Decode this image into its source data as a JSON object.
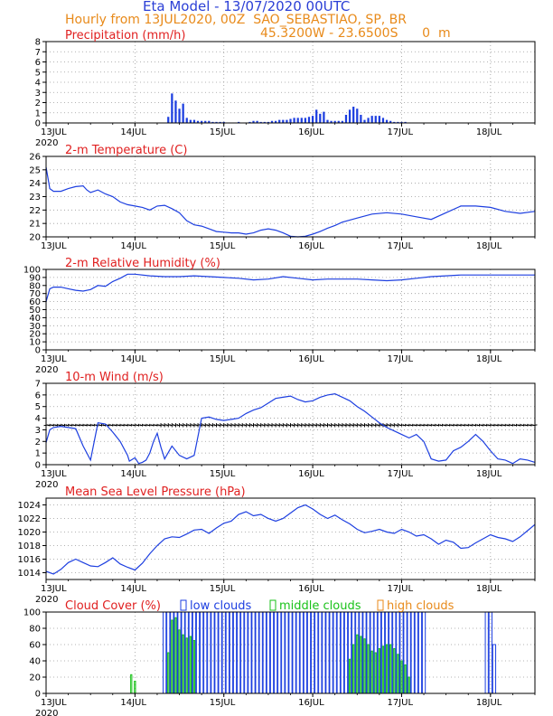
{
  "header": {
    "title": "Eta Model - 13/07/2020 00UTC",
    "subtitle": "Hourly from 13JUL2020, 00Z  SAO_SEBASTIAO, SP, BR",
    "coords": "45.3200W - 23.6500S      0  m"
  },
  "colors": {
    "blue": "#1d3fe0",
    "red": "#e02020",
    "orange": "#e88a1a",
    "green": "#19c219",
    "black": "#000000"
  },
  "axis": {
    "day_labels": [
      "13JUL",
      "14JUL",
      "15JUL",
      "16JUL",
      "17JUL",
      "18JUL"
    ],
    "year_label": "2020",
    "x_range_hours": [
      0,
      132
    ]
  },
  "chart_data": [
    {
      "id": "precip",
      "type": "bar",
      "title": "Precipitation (mm/h)",
      "ylim": [
        0,
        8
      ],
      "yticks": [
        "0",
        "1",
        "2",
        "3",
        "4",
        "5",
        "6",
        "7",
        "8"
      ],
      "x": [
        33,
        34,
        35,
        36,
        37,
        38,
        39,
        40,
        41,
        42,
        43,
        44,
        45,
        46,
        47,
        48,
        52,
        55,
        56,
        57,
        58,
        59,
        60,
        61,
        62,
        63,
        64,
        65,
        66,
        67,
        68,
        69,
        70,
        71,
        72,
        73,
        74,
        75,
        76,
        77,
        78,
        79,
        80,
        81,
        82,
        83,
        84,
        85,
        86,
        87,
        88,
        89,
        90,
        91,
        92,
        93,
        94,
        95,
        96,
        97
      ],
      "values": [
        0.6,
        2.9,
        2.2,
        1.4,
        1.9,
        0.5,
        0.3,
        0.3,
        0.2,
        0.2,
        0.2,
        0.2,
        0.1,
        0.1,
        0.1,
        0.1,
        0.1,
        0.1,
        0.2,
        0.2,
        0.1,
        0.1,
        0.1,
        0.2,
        0.2,
        0.3,
        0.3,
        0.3,
        0.4,
        0.5,
        0.5,
        0.5,
        0.5,
        0.6,
        0.7,
        1.3,
        0.9,
        1.1,
        0.3,
        0.2,
        0.2,
        0.2,
        0.2,
        0.8,
        1.3,
        1.6,
        1.4,
        0.8,
        0.3,
        0.5,
        0.7,
        0.7,
        0.7,
        0.5,
        0.3,
        0.2,
        0.1,
        0.1,
        0.1,
        0.1
      ]
    },
    {
      "id": "temp",
      "type": "line",
      "title": "2-m Temperature (C)",
      "ylim": [
        20,
        26
      ],
      "yticks": [
        "20",
        "21",
        "22",
        "23",
        "24",
        "25",
        "26"
      ],
      "x": [
        0,
        1,
        2,
        4,
        6,
        8,
        10,
        11,
        12,
        14,
        16,
        18,
        20,
        22,
        24,
        26,
        28,
        30,
        32,
        34,
        36,
        38,
        40,
        42,
        44,
        46,
        48,
        50,
        52,
        54,
        56,
        58,
        60,
        62,
        64,
        66,
        68,
        70,
        72,
        74,
        76,
        78,
        80,
        84,
        88,
        92,
        96,
        100,
        104,
        108,
        112,
        116,
        120,
        124,
        128,
        132
      ],
      "values": [
        25.2,
        23.6,
        23.4,
        23.4,
        23.6,
        23.75,
        23.8,
        23.5,
        23.3,
        23.5,
        23.2,
        23.0,
        22.6,
        22.4,
        22.3,
        22.2,
        22.0,
        22.3,
        22.35,
        22.1,
        21.8,
        21.2,
        20.9,
        20.8,
        20.6,
        20.4,
        20.35,
        20.3,
        20.3,
        20.2,
        20.3,
        20.5,
        20.6,
        20.5,
        20.3,
        20.05,
        20.0,
        20.05,
        20.2,
        20.4,
        20.65,
        20.85,
        21.1,
        21.4,
        21.7,
        21.8,
        21.7,
        21.5,
        21.3,
        21.8,
        22.3,
        22.3,
        22.2,
        21.9,
        21.75,
        21.9
      ]
    },
    {
      "id": "rh",
      "type": "line",
      "title": "2-m Relative Humidity (%)",
      "ylim": [
        0,
        100
      ],
      "yticks": [
        "0",
        "10",
        "20",
        "30",
        "40",
        "50",
        "60",
        "70",
        "80",
        "90",
        "100"
      ],
      "x": [
        0,
        1,
        2,
        4,
        6,
        8,
        10,
        12,
        14,
        16,
        18,
        20,
        22,
        24,
        28,
        32,
        36,
        40,
        44,
        48,
        52,
        56,
        60,
        64,
        68,
        72,
        76,
        80,
        84,
        88,
        92,
        96,
        100,
        104,
        108,
        112,
        116,
        120,
        124,
        128,
        132
      ],
      "values": [
        60,
        76,
        78,
        78,
        76,
        74,
        73,
        75,
        80,
        79,
        85,
        89,
        94,
        94,
        92,
        91,
        91,
        92,
        91,
        90,
        89,
        87,
        88,
        91,
        89,
        87,
        88,
        88,
        88,
        87,
        86,
        87,
        89,
        91,
        92,
        93,
        93,
        93,
        93,
        93,
        93
      ]
    },
    {
      "id": "wind",
      "type": "line",
      "title": "10-m Wind (m/s)",
      "ylim": [
        0,
        7
      ],
      "yticks": [
        "0",
        "1",
        "2",
        "3",
        "4",
        "5",
        "6",
        "7"
      ],
      "x": [
        0,
        1,
        2,
        4,
        6,
        8,
        10,
        12,
        13,
        14,
        16,
        18,
        20,
        22,
        22.5,
        24,
        25,
        26,
        27,
        28,
        29,
        30,
        31,
        32,
        34,
        36,
        38,
        40,
        42,
        44,
        46,
        48,
        50,
        52,
        54,
        56,
        58,
        60,
        62,
        64,
        66,
        68,
        70,
        72,
        74,
        76,
        78,
        80,
        82,
        84,
        86,
        88,
        90,
        92,
        94,
        96,
        98,
        100,
        102,
        104,
        106,
        108,
        110,
        112,
        114,
        116,
        118,
        120,
        122,
        124,
        126,
        128,
        130,
        132
      ],
      "values": [
        1.9,
        3.0,
        3.2,
        3.3,
        3.2,
        3.1,
        1.6,
        0.4,
        2.0,
        3.6,
        3.5,
        2.8,
        2.0,
        0.8,
        0.3,
        0.6,
        0.1,
        0.2,
        0.4,
        1.0,
        2.0,
        2.7,
        1.5,
        0.5,
        1.6,
        0.8,
        0.5,
        0.8,
        4.0,
        4.1,
        3.9,
        3.8,
        3.9,
        4.0,
        4.4,
        4.7,
        4.9,
        5.3,
        5.7,
        5.8,
        5.9,
        5.6,
        5.4,
        5.5,
        5.8,
        6.0,
        6.1,
        5.8,
        5.5,
        5.0,
        4.6,
        4.1,
        3.6,
        3.2,
        2.9,
        2.6,
        2.3,
        2.6,
        2.0,
        0.5,
        0.3,
        0.4,
        1.2,
        1.5,
        2.0,
        2.6,
        2.0,
        1.2,
        0.5,
        0.4,
        0.1,
        0.5,
        0.4,
        0.2
      ]
    },
    {
      "id": "mslp",
      "type": "line",
      "title": "Mean Sea Level Pressure (hPa)",
      "ylim": [
        1013,
        1025
      ],
      "yticks": [
        "1014",
        "1016",
        "1018",
        "1020",
        "1022",
        "1024"
      ],
      "x": [
        0,
        2,
        4,
        6,
        8,
        10,
        12,
        14,
        16,
        18,
        20,
        22,
        24,
        26,
        28,
        30,
        32,
        34,
        36,
        38,
        40,
        42,
        44,
        46,
        48,
        50,
        52,
        54,
        56,
        58,
        60,
        62,
        64,
        66,
        68,
        70,
        72,
        74,
        76,
        78,
        80,
        82,
        84,
        86,
        88,
        90,
        92,
        94,
        96,
        98,
        100,
        102,
        104,
        106,
        108,
        110,
        112,
        114,
        116,
        118,
        120,
        122,
        124,
        126,
        128,
        130,
        132
      ],
      "values": [
        1014.2,
        1013.8,
        1014.5,
        1015.5,
        1016.0,
        1015.5,
        1015.0,
        1014.9,
        1015.5,
        1016.2,
        1015.3,
        1014.8,
        1014.4,
        1015.4,
        1016.8,
        1018.0,
        1019.0,
        1019.3,
        1019.2,
        1019.7,
        1020.3,
        1020.4,
        1019.8,
        1020.6,
        1021.3,
        1021.6,
        1022.6,
        1023.0,
        1022.4,
        1022.6,
        1022.0,
        1021.6,
        1022.0,
        1022.8,
        1023.6,
        1024.0,
        1023.4,
        1022.6,
        1022.0,
        1022.5,
        1021.8,
        1021.2,
        1020.4,
        1019.9,
        1020.1,
        1020.4,
        1020.0,
        1019.8,
        1020.4,
        1020.0,
        1019.4,
        1019.6,
        1019.0,
        1018.2,
        1018.8,
        1018.5,
        1017.6,
        1017.7,
        1018.4,
        1019.0,
        1019.6,
        1019.2,
        1019.0,
        1018.6,
        1019.3,
        1020.2,
        1021.1
      ]
    },
    {
      "id": "cloud",
      "type": "bar",
      "title": "Cloud Cover (%)",
      "ylim": [
        0,
        100
      ],
      "yticks": [
        "0",
        "20",
        "40",
        "60",
        "80",
        "100"
      ],
      "legend": [
        "low clouds",
        "middle clouds",
        "high clouds"
      ],
      "series": [
        {
          "name": "low clouds",
          "x": [
            32,
            33,
            34,
            35,
            36,
            37,
            38,
            39,
            40,
            41,
            42,
            43,
            44,
            45,
            46,
            47,
            48,
            49,
            50,
            51,
            52,
            53,
            54,
            55,
            56,
            57,
            58,
            59,
            60,
            61,
            62,
            63,
            64,
            65,
            66,
            67,
            68,
            69,
            70,
            71,
            72,
            73,
            74,
            75,
            76,
            77,
            78,
            79,
            80,
            81,
            82,
            83,
            84,
            85,
            86,
            87,
            88,
            89,
            90,
            91,
            92,
            93,
            94,
            95,
            96,
            97,
            98,
            99,
            100,
            101,
            102,
            119,
            120,
            121
          ],
          "values": [
            100,
            100,
            100,
            100,
            100,
            100,
            100,
            100,
            100,
            100,
            100,
            100,
            100,
            100,
            100,
            100,
            100,
            100,
            100,
            100,
            100,
            100,
            100,
            100,
            100,
            100,
            100,
            100,
            100,
            100,
            100,
            100,
            100,
            100,
            100,
            100,
            100,
            100,
            100,
            100,
            100,
            100,
            100,
            100,
            100,
            100,
            100,
            100,
            100,
            100,
            100,
            100,
            100,
            100,
            100,
            100,
            100,
            100,
            100,
            100,
            100,
            100,
            100,
            100,
            100,
            100,
            100,
            100,
            100,
            100,
            100,
            100,
            100,
            60
          ]
        },
        {
          "name": "middle clouds",
          "x": [
            23,
            24,
            33,
            34,
            35,
            36,
            37,
            38,
            39,
            40,
            82,
            83,
            84,
            85,
            86,
            87,
            88,
            89,
            90,
            91,
            92,
            93,
            94,
            95,
            96,
            97,
            98
          ],
          "values": [
            23,
            15,
            50,
            90,
            93,
            78,
            72,
            68,
            70,
            65,
            42,
            60,
            72,
            70,
            67,
            60,
            52,
            50,
            55,
            58,
            60,
            60,
            55,
            48,
            40,
            35,
            20
          ]
        },
        {
          "name": "high clouds",
          "x": [],
          "values": []
        }
      ]
    }
  ]
}
